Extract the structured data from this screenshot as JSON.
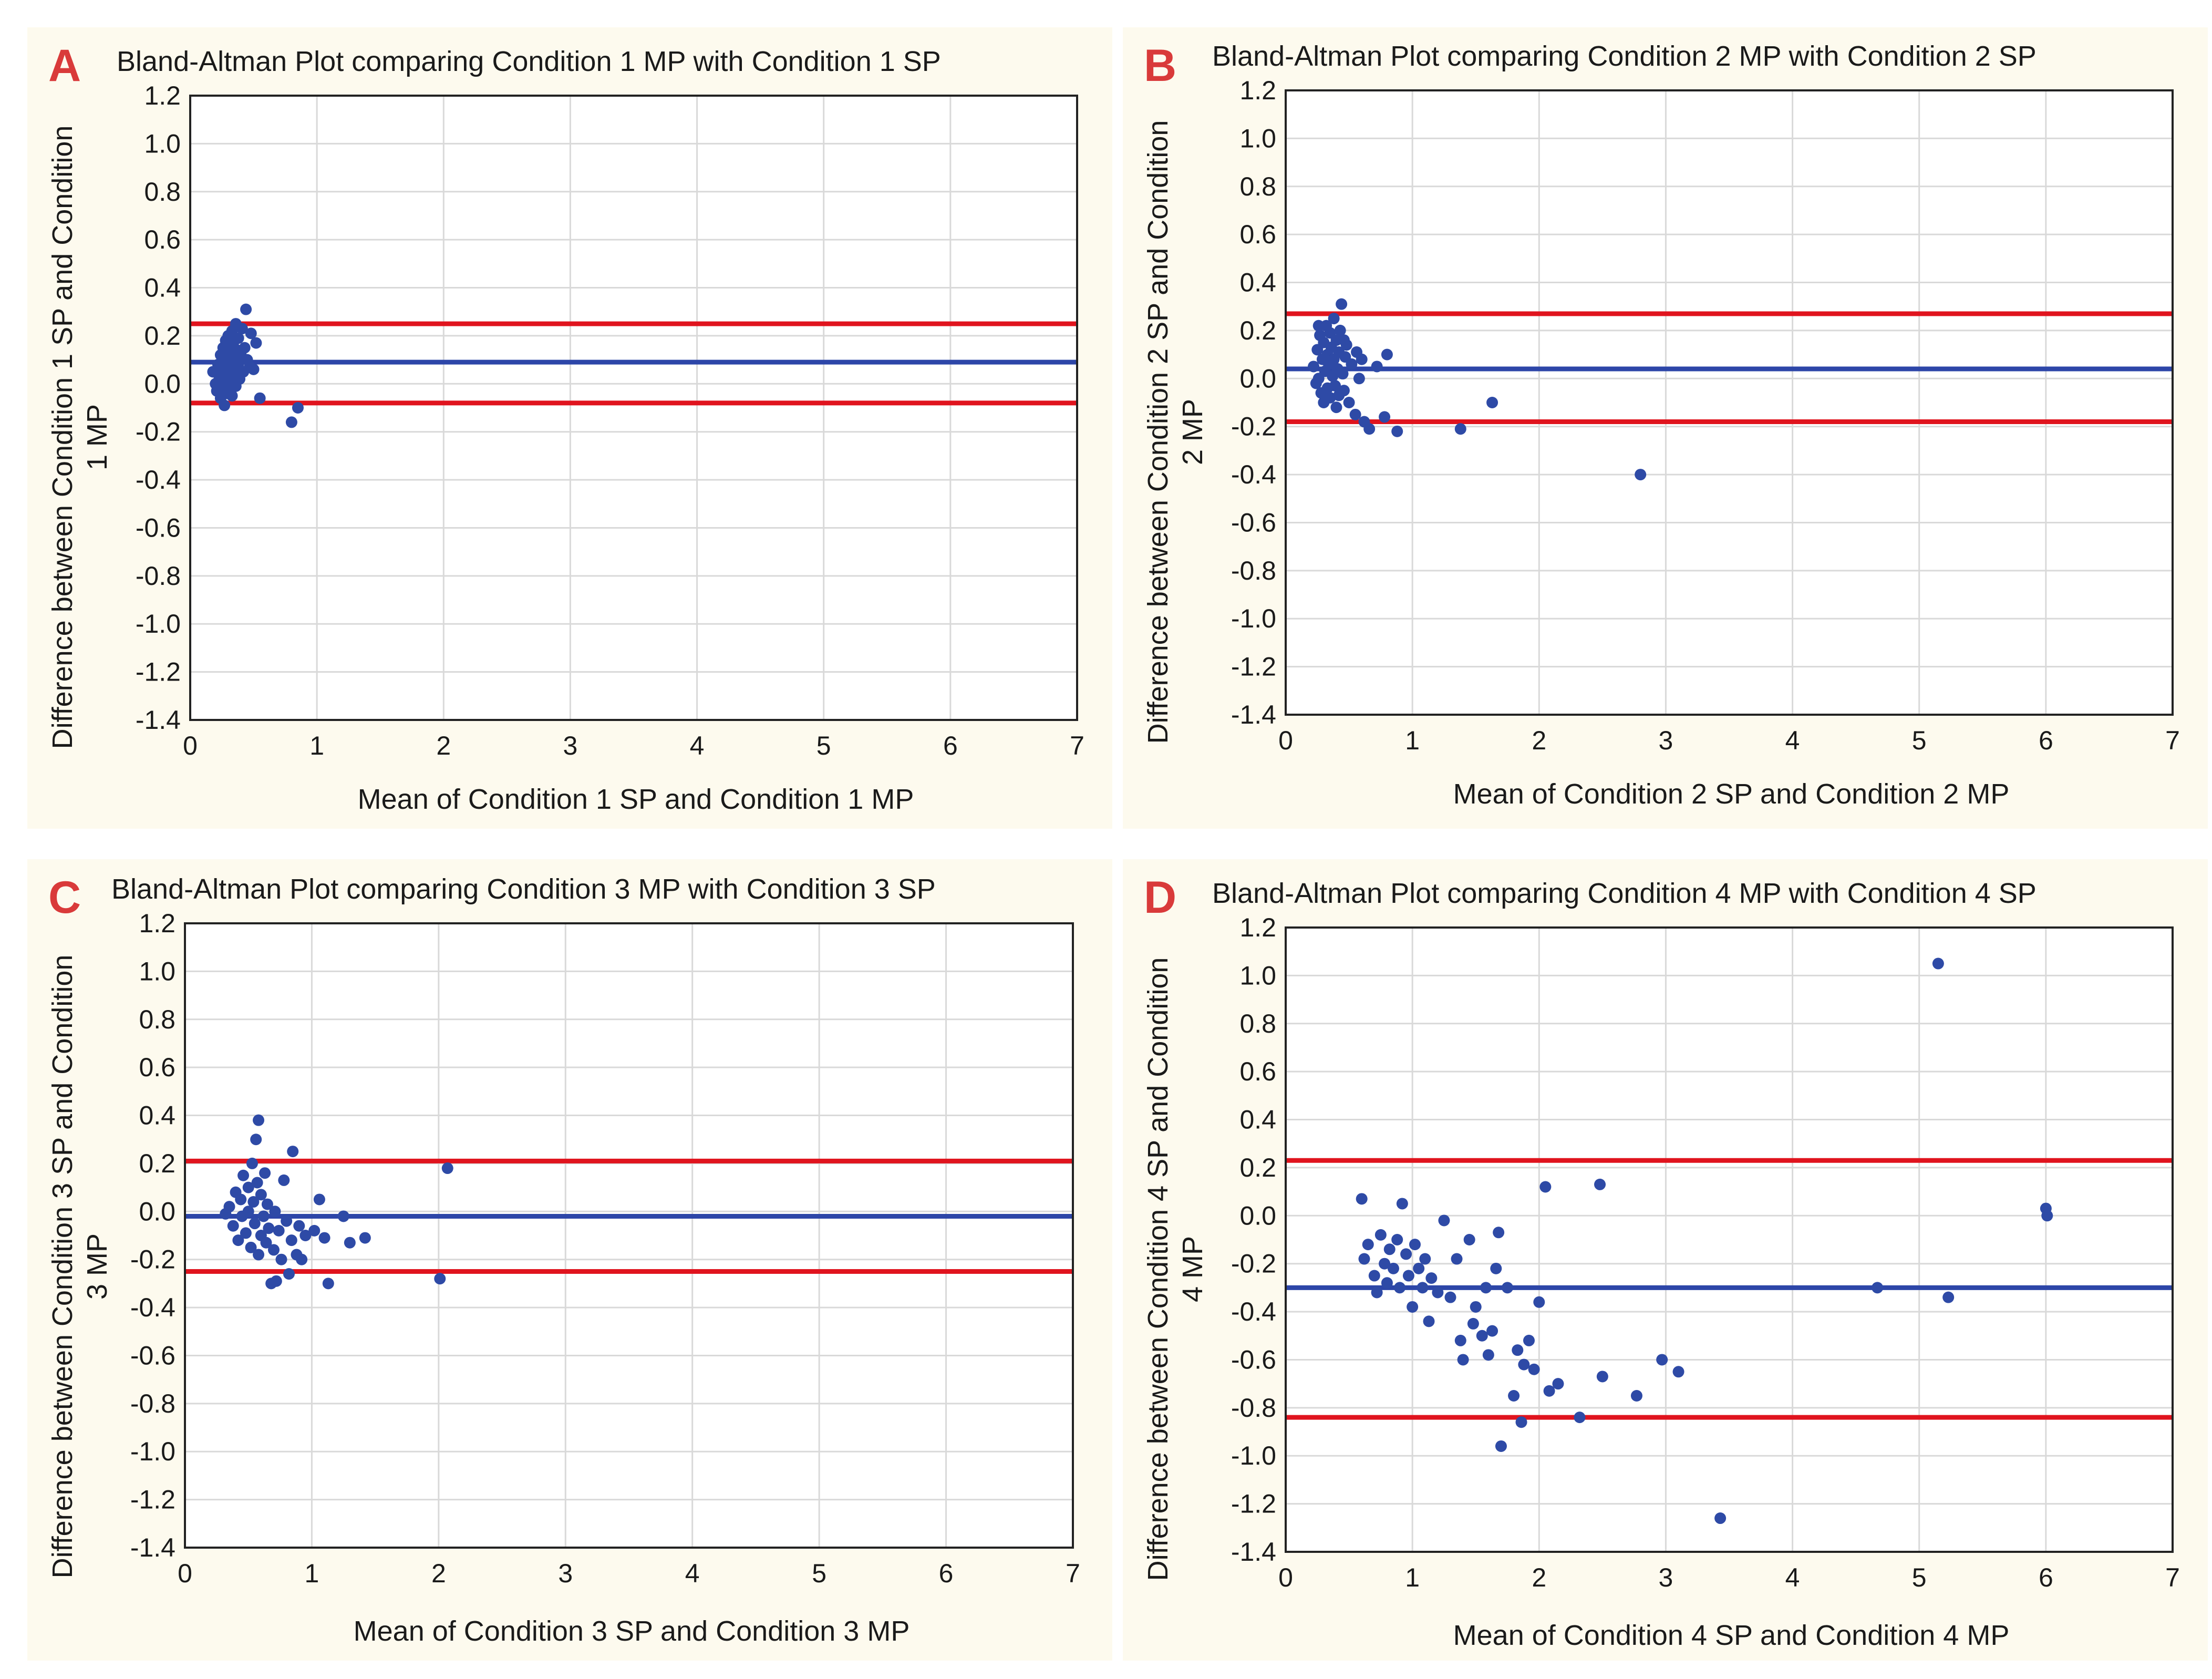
{
  "colors": {
    "panel_bg": "#fdfaee",
    "plot_bg": "#ffffff",
    "grid": "#d9d9d9",
    "frame": "#222222",
    "mean_line": "#2d46a8",
    "limit_line": "#e0141e",
    "point": "#2e4aa6",
    "panel_letter": "#d93a3a"
  },
  "chart_data": [
    {
      "type": "scatter",
      "panel_letter": "A",
      "title": "Bland-Altman Plot comparing Condition 1 MP with Condition 1 SP",
      "xlabel": "Mean of Condition 1 SP and Condition 1 MP",
      "ylabel": "Difference between Condition 1 SP and Condition 1 MP",
      "xlim": [
        0,
        7
      ],
      "ylim": [
        -1.4,
        1.2
      ],
      "x_ticks": [
        "0",
        "1",
        "2",
        "3",
        "4",
        "5",
        "6",
        "7"
      ],
      "y_ticks": [
        "1.2",
        "1.0",
        "0.8",
        "0.6",
        "0.4",
        "0.2",
        "0.0",
        "-0.2",
        "-0.4",
        "-0.6",
        "-0.8",
        "-1.0",
        "-1.2",
        "-1.4"
      ],
      "grid": true,
      "mean_bias": 0.09,
      "upper_limit": 0.25,
      "lower_limit": -0.08,
      "points": [
        [
          0.18,
          0.05
        ],
        [
          0.2,
          0.0
        ],
        [
          0.21,
          -0.03
        ],
        [
          0.22,
          0.08
        ],
        [
          0.23,
          0.02
        ],
        [
          0.24,
          -0.06
        ],
        [
          0.24,
          0.12
        ],
        [
          0.25,
          0.04
        ],
        [
          0.25,
          -0.01
        ],
        [
          0.26,
          0.15
        ],
        [
          0.26,
          0.07
        ],
        [
          0.27,
          -0.09
        ],
        [
          0.27,
          0.0
        ],
        [
          0.28,
          0.18
        ],
        [
          0.28,
          0.1
        ],
        [
          0.28,
          0.03
        ],
        [
          0.29,
          -0.04
        ],
        [
          0.29,
          0.13
        ],
        [
          0.3,
          0.06
        ],
        [
          0.3,
          0.2
        ],
        [
          0.3,
          -0.02
        ],
        [
          0.31,
          0.09
        ],
        [
          0.31,
          0.16
        ],
        [
          0.32,
          0.01
        ],
        [
          0.32,
          0.12
        ],
        [
          0.33,
          0.22
        ],
        [
          0.33,
          -0.05
        ],
        [
          0.34,
          0.07
        ],
        [
          0.34,
          0.17
        ],
        [
          0.35,
          0.04
        ],
        [
          0.35,
          0.11
        ],
        [
          0.36,
          0.25
        ],
        [
          0.36,
          -0.01
        ],
        [
          0.37,
          0.14
        ],
        [
          0.38,
          0.08
        ],
        [
          0.38,
          0.19
        ],
        [
          0.39,
          0.02
        ],
        [
          0.4,
          0.12
        ],
        [
          0.41,
          0.23
        ],
        [
          0.42,
          0.05
        ],
        [
          0.43,
          0.15
        ],
        [
          0.44,
          0.31
        ],
        [
          0.45,
          0.1
        ],
        [
          0.47,
          0.07
        ],
        [
          0.48,
          0.21
        ],
        [
          0.5,
          0.06
        ],
        [
          0.52,
          0.17
        ],
        [
          0.55,
          -0.06
        ],
        [
          0.8,
          -0.16
        ],
        [
          0.85,
          -0.1
        ]
      ]
    },
    {
      "type": "scatter",
      "panel_letter": "B",
      "title": "Bland-Altman Plot comparing Condition 2 MP with Condition 2 SP",
      "xlabel": "Mean of Condition 2 SP and Condition 2 MP",
      "ylabel": "Difference between Condition 2 SP and Condition 2 MP",
      "xlim": [
        0,
        7
      ],
      "ylim": [
        -1.4,
        1.2
      ],
      "x_ticks": [
        "0",
        "1",
        "2",
        "3",
        "4",
        "5",
        "6",
        "7"
      ],
      "y_ticks": [
        "1.2",
        "1.0",
        "0.8",
        "0.6",
        "0.4",
        "0.2",
        "0.0",
        "-0.2",
        "-0.4",
        "-0.6",
        "-0.8",
        "-1.0",
        "-1.2",
        "-1.4"
      ],
      "grid": true,
      "mean_bias": 0.04,
      "upper_limit": 0.27,
      "lower_limit": -0.18,
      "points": [
        [
          0.22,
          0.05
        ],
        [
          0.24,
          -0.02
        ],
        [
          0.25,
          0.12
        ],
        [
          0.26,
          0.0
        ],
        [
          0.27,
          0.18
        ],
        [
          0.28,
          -0.06
        ],
        [
          0.29,
          0.08
        ],
        [
          0.3,
          0.15
        ],
        [
          0.3,
          -0.1
        ],
        [
          0.31,
          0.03
        ],
        [
          0.32,
          0.22
        ],
        [
          0.33,
          0.1
        ],
        [
          0.33,
          -0.04
        ],
        [
          0.34,
          0.06
        ],
        [
          0.35,
          0.19
        ],
        [
          0.35,
          -0.08
        ],
        [
          0.36,
          0.13
        ],
        [
          0.37,
          0.01
        ],
        [
          0.38,
          0.25
        ],
        [
          0.38,
          0.08
        ],
        [
          0.39,
          -0.03
        ],
        [
          0.4,
          0.16
        ],
        [
          0.41,
          0.04
        ],
        [
          0.42,
          -0.07
        ],
        [
          0.42,
          0.11
        ],
        [
          0.43,
          0.2
        ],
        [
          0.44,
          0.31
        ],
        [
          0.45,
          0.02
        ],
        [
          0.46,
          -0.05
        ],
        [
          0.47,
          0.09
        ],
        [
          0.48,
          0.14
        ],
        [
          0.5,
          -0.1
        ],
        [
          0.52,
          0.06
        ],
        [
          0.55,
          -0.15
        ],
        [
          0.58,
          0.0
        ],
        [
          0.62,
          -0.18
        ],
        [
          0.66,
          -0.21
        ],
        [
          0.72,
          0.05
        ],
        [
          0.78,
          -0.16
        ],
        [
          0.8,
          0.1
        ],
        [
          0.88,
          -0.22
        ],
        [
          1.38,
          -0.21
        ],
        [
          1.63,
          -0.1
        ],
        [
          2.8,
          -0.4
        ],
        [
          0.26,
          0.22
        ],
        [
          0.36,
          0.07
        ],
        [
          0.46,
          0.16
        ],
        [
          0.56,
          0.11
        ],
        [
          0.6,
          0.08
        ],
        [
          0.4,
          -0.12
        ]
      ]
    },
    {
      "type": "scatter",
      "panel_letter": "C",
      "title": "Bland-Altman Plot comparing Condition 3 MP with Condition 3 SP",
      "xlabel": "Mean of Condition 3 SP and Condition 3 MP",
      "ylabel": "Difference between Condition 3 SP and Condition 3 MP",
      "xlim": [
        0,
        7
      ],
      "ylim": [
        -1.4,
        1.2
      ],
      "x_ticks": [
        "0",
        "1",
        "2",
        "3",
        "4",
        "5",
        "6",
        "7"
      ],
      "y_ticks": [
        "1.2",
        "1.0",
        "0.8",
        "0.6",
        "0.4",
        "0.2",
        "0.0",
        "-0.2",
        "-0.4",
        "-0.6",
        "-0.8",
        "-1.0",
        "-1.2",
        "-1.4"
      ],
      "grid": true,
      "mean_bias": -0.02,
      "upper_limit": 0.21,
      "lower_limit": -0.25,
      "points": [
        [
          0.32,
          -0.01
        ],
        [
          0.35,
          0.02
        ],
        [
          0.38,
          -0.06
        ],
        [
          0.4,
          0.08
        ],
        [
          0.42,
          -0.12
        ],
        [
          0.44,
          0.05
        ],
        [
          0.45,
          -0.02
        ],
        [
          0.46,
          0.15
        ],
        [
          0.48,
          -0.09
        ],
        [
          0.5,
          0.1
        ],
        [
          0.5,
          0.0
        ],
        [
          0.52,
          -0.15
        ],
        [
          0.53,
          0.2
        ],
        [
          0.54,
          0.04
        ],
        [
          0.55,
          -0.05
        ],
        [
          0.56,
          0.3
        ],
        [
          0.57,
          0.12
        ],
        [
          0.58,
          -0.18
        ],
        [
          0.58,
          0.38
        ],
        [
          0.6,
          0.07
        ],
        [
          0.6,
          -0.1
        ],
        [
          0.62,
          -0.02
        ],
        [
          0.63,
          0.16
        ],
        [
          0.64,
          -0.13
        ],
        [
          0.65,
          0.03
        ],
        [
          0.66,
          -0.07
        ],
        [
          0.68,
          -0.3
        ],
        [
          0.7,
          -0.16
        ],
        [
          0.71,
          0.0
        ],
        [
          0.72,
          -0.29
        ],
        [
          0.74,
          -0.08
        ],
        [
          0.76,
          -0.2
        ],
        [
          0.78,
          0.13
        ],
        [
          0.8,
          -0.04
        ],
        [
          0.82,
          -0.26
        ],
        [
          0.84,
          -0.12
        ],
        [
          0.85,
          0.25
        ],
        [
          0.88,
          -0.18
        ],
        [
          0.9,
          -0.06
        ],
        [
          0.92,
          -0.2
        ],
        [
          0.95,
          -0.1
        ],
        [
          1.02,
          -0.08
        ],
        [
          1.06,
          0.05
        ],
        [
          1.1,
          -0.11
        ],
        [
          1.13,
          -0.3
        ],
        [
          1.25,
          -0.02
        ],
        [
          1.3,
          -0.13
        ],
        [
          1.42,
          -0.11
        ],
        [
          2.01,
          -0.28
        ],
        [
          2.07,
          0.18
        ]
      ]
    },
    {
      "type": "scatter",
      "panel_letter": "D",
      "title": "Bland-Altman Plot comparing Condition 4 MP with Condition 4 SP",
      "xlabel": "Mean of Condition 4 SP and Condition 4 MP",
      "ylabel": "Difference between Condition 4 SP and Condition 4 MP",
      "xlim": [
        0,
        7
      ],
      "ylim": [
        -1.4,
        1.2
      ],
      "x_ticks": [
        "0",
        "1",
        "2",
        "3",
        "4",
        "5",
        "6",
        "7"
      ],
      "y_ticks": [
        "1.2",
        "1.0",
        "0.8",
        "0.6",
        "0.4",
        "0.2",
        "0.0",
        "-0.2",
        "-0.4",
        "-0.6",
        "-0.8",
        "-1.0",
        "-1.2",
        "-1.4"
      ],
      "grid": true,
      "mean_bias": -0.3,
      "upper_limit": 0.23,
      "lower_limit": -0.84,
      "points": [
        [
          0.6,
          0.07
        ],
        [
          0.62,
          -0.18
        ],
        [
          0.65,
          -0.12
        ],
        [
          0.7,
          -0.25
        ],
        [
          0.72,
          -0.32
        ],
        [
          0.75,
          -0.08
        ],
        [
          0.78,
          -0.2
        ],
        [
          0.8,
          -0.28
        ],
        [
          0.82,
          -0.14
        ],
        [
          0.85,
          -0.22
        ],
        [
          0.88,
          -0.1
        ],
        [
          0.9,
          -0.3
        ],
        [
          0.92,
          0.05
        ],
        [
          0.95,
          -0.16
        ],
        [
          0.97,
          -0.25
        ],
        [
          1.0,
          -0.38
        ],
        [
          1.02,
          -0.12
        ],
        [
          1.05,
          -0.22
        ],
        [
          1.08,
          -0.3
        ],
        [
          1.1,
          -0.18
        ],
        [
          1.13,
          -0.44
        ],
        [
          1.15,
          -0.26
        ],
        [
          1.2,
          -0.32
        ],
        [
          1.25,
          -0.02
        ],
        [
          1.3,
          -0.34
        ],
        [
          1.35,
          -0.18
        ],
        [
          1.38,
          -0.52
        ],
        [
          1.4,
          -0.6
        ],
        [
          1.45,
          -0.1
        ],
        [
          1.48,
          -0.45
        ],
        [
          1.5,
          -0.38
        ],
        [
          1.55,
          -0.5
        ],
        [
          1.58,
          -0.3
        ],
        [
          1.6,
          -0.58
        ],
        [
          1.63,
          -0.48
        ],
        [
          1.66,
          -0.22
        ],
        [
          1.68,
          -0.07
        ],
        [
          1.7,
          -0.96
        ],
        [
          1.75,
          -0.3
        ],
        [
          1.8,
          -0.75
        ],
        [
          1.83,
          -0.56
        ],
        [
          1.86,
          -0.86
        ],
        [
          1.88,
          -0.62
        ],
        [
          1.92,
          -0.52
        ],
        [
          1.96,
          -0.64
        ],
        [
          2.0,
          -0.36
        ],
        [
          2.05,
          0.12
        ],
        [
          2.08,
          -0.73
        ],
        [
          2.15,
          -0.7
        ],
        [
          2.32,
          -0.84
        ],
        [
          2.48,
          0.13
        ],
        [
          2.5,
          -0.67
        ],
        [
          2.77,
          -0.75
        ],
        [
          2.97,
          -0.6
        ],
        [
          3.1,
          -0.65
        ],
        [
          3.43,
          -1.26
        ],
        [
          4.67,
          -0.3
        ],
        [
          5.15,
          1.05
        ],
        [
          5.23,
          -0.34
        ],
        [
          6.0,
          0.03
        ],
        [
          6.01,
          0.0
        ]
      ]
    }
  ]
}
